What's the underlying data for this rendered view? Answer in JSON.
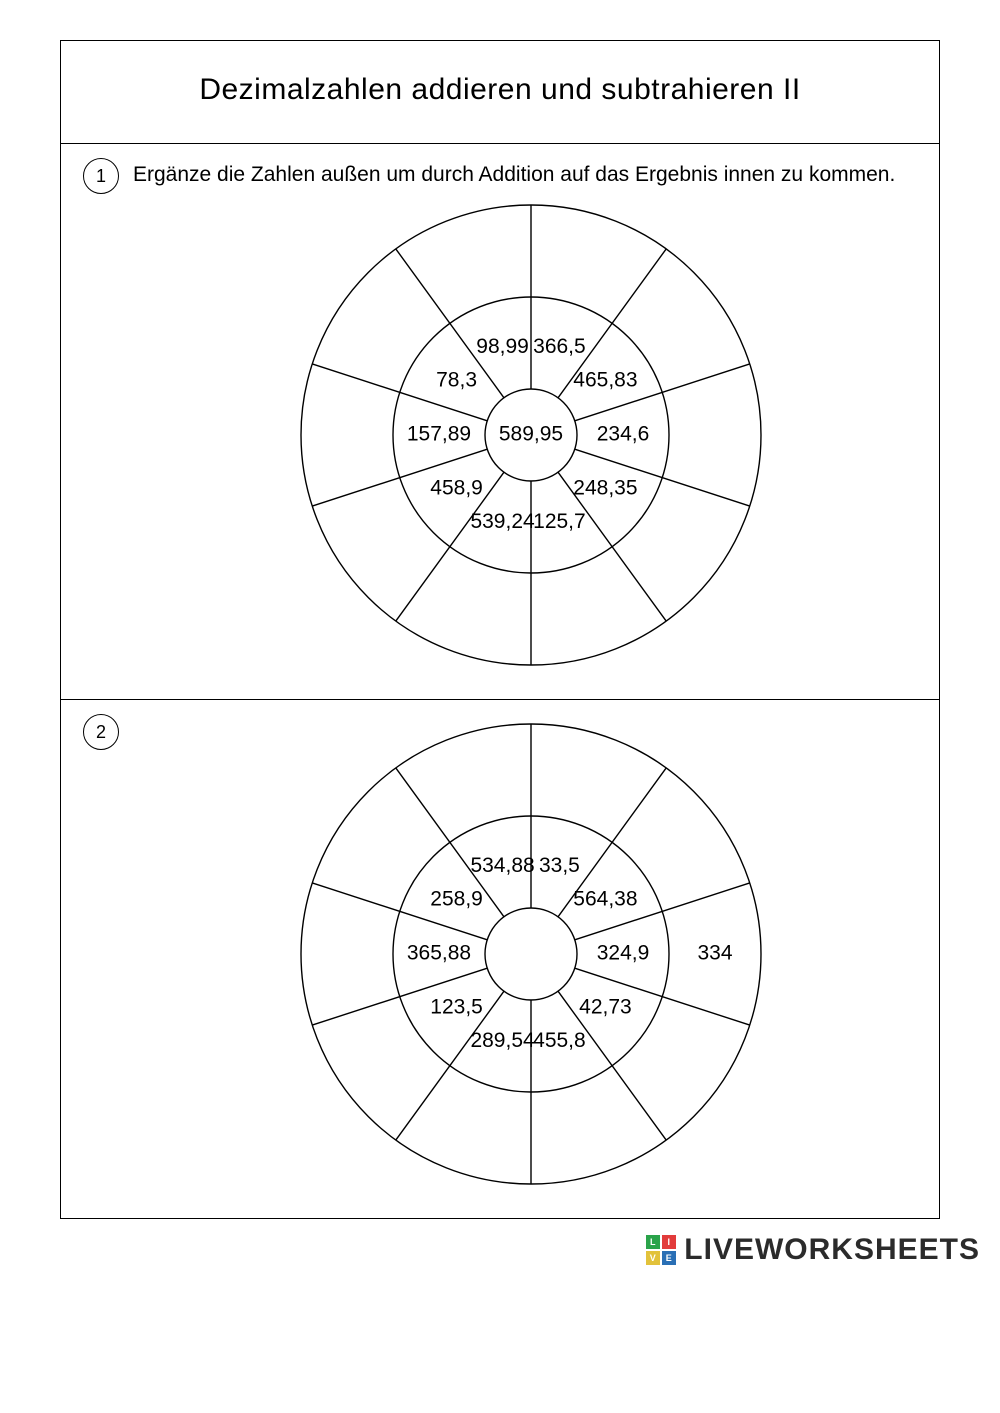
{
  "title": "Dezimalzahlen addieren und subtrahieren II",
  "instruction": "Ergänze die Zahlen außen um durch Addition auf das Ergebnis innen zu kommen.",
  "footer_brand": "LIVEWORKSHEETS",
  "wheel_style": {
    "r_outer": 230,
    "r_mid": 138,
    "r_inner": 46,
    "r_label_inner": 92,
    "r_label_outer": 184,
    "stroke": "#000000",
    "stroke_width": 1.4,
    "slices": 10,
    "start_angle_deg": -90
  },
  "exercises": [
    {
      "number": "1",
      "center": "589,95",
      "inner": [
        "366,5",
        "465,83",
        "234,6",
        "248,35",
        "125,7",
        "539,24",
        "458,9",
        "157,89",
        "78,3",
        "98,99"
      ],
      "outer": [
        "",
        "",
        "",
        "",
        "",
        "",
        "",
        "",
        "",
        ""
      ]
    },
    {
      "number": "2",
      "center": "",
      "inner": [
        "33,5",
        "564,38",
        "324,9",
        "42,73",
        "455,8",
        "289,54",
        "123,5",
        "365,88",
        "258,9",
        "534,88"
      ],
      "outer": [
        "",
        "",
        "334",
        "",
        "",
        "",
        "",
        "",
        "",
        ""
      ]
    }
  ]
}
